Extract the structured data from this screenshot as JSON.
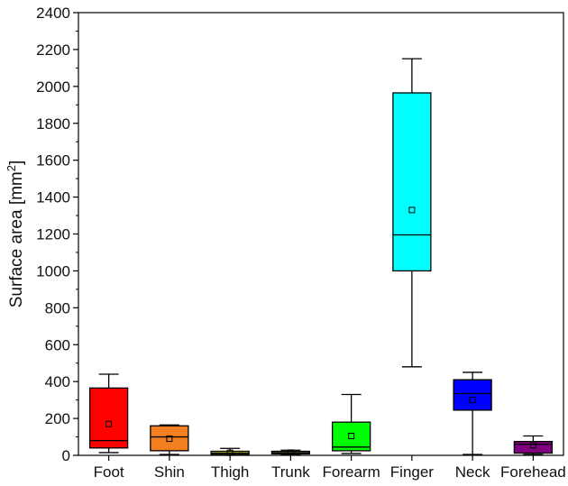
{
  "chart_data": {
    "type": "box",
    "ylabel": "Surface area [mm",
    "ylabel_sup": "2",
    "ylabel_end": "]",
    "xlabel": "",
    "ylim": [
      0,
      2400
    ],
    "yticks": [
      0,
      200,
      400,
      600,
      800,
      1000,
      1200,
      1400,
      1600,
      1800,
      2000,
      2200,
      2400
    ],
    "grid": false,
    "legend": "none",
    "categories": [
      "Foot",
      "Shin",
      "Thigh",
      "Trunk",
      "Forearm",
      "Finger",
      "Neck",
      "Forehead"
    ],
    "boxes": [
      {
        "category": "Foot",
        "whisker_low": 15,
        "q1": 40,
        "median": 80,
        "q3": 365,
        "whisker_high": 440,
        "mean": 170,
        "color": "#ff0000"
      },
      {
        "category": "Shin",
        "whisker_low": 5,
        "q1": 25,
        "median": 100,
        "q3": 160,
        "whisker_high": 165,
        "mean": 90,
        "color": "#f47f20"
      },
      {
        "category": "Thigh",
        "whisker_low": 2,
        "q1": 5,
        "median": 12,
        "q3": 22,
        "whisker_high": 38,
        "mean": 14,
        "color": "#cfcf30"
      },
      {
        "category": "Trunk",
        "whisker_low": 3,
        "q1": 8,
        "median": 14,
        "q3": 22,
        "whisker_high": 28,
        "mean": 15,
        "color": "#8a9a3c"
      },
      {
        "category": "Forearm",
        "whisker_low": 10,
        "q1": 25,
        "median": 45,
        "q3": 180,
        "whisker_high": 330,
        "mean": 105,
        "color": "#00ff00"
      },
      {
        "category": "Finger",
        "whisker_low": 480,
        "q1": 1000,
        "median": 1195,
        "q3": 1965,
        "whisker_high": 2150,
        "mean": 1330,
        "color": "#00ffff"
      },
      {
        "category": "Neck",
        "whisker_low": 5,
        "q1": 245,
        "median": 335,
        "q3": 410,
        "whisker_high": 450,
        "mean": 300,
        "color": "#0000ff"
      },
      {
        "category": "Forehead",
        "whisker_low": 5,
        "q1": 12,
        "median": 60,
        "q3": 75,
        "whisker_high": 105,
        "mean": 55,
        "color": "#800080"
      }
    ]
  }
}
